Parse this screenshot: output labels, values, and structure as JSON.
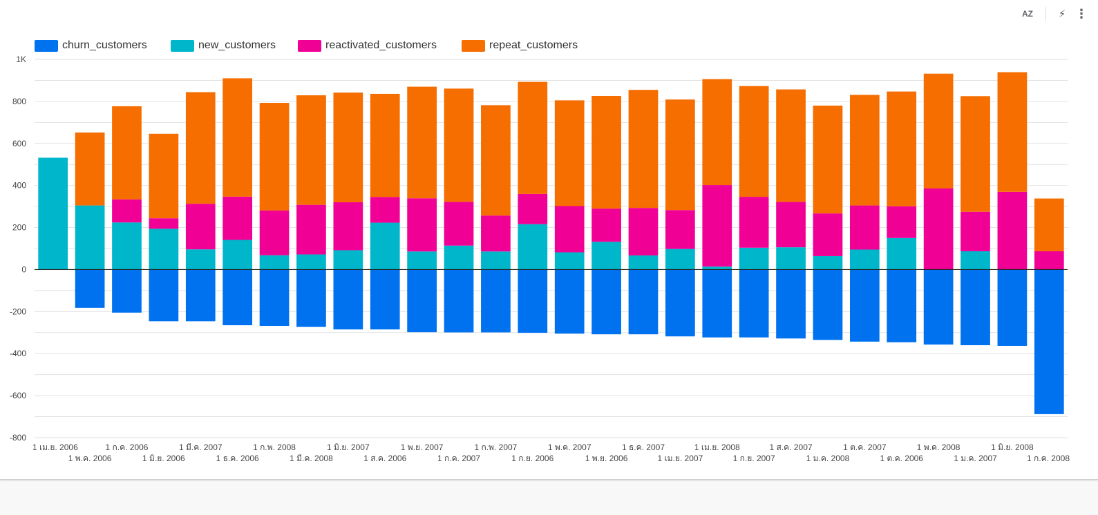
{
  "toolbar": {
    "sort_label": "AZ",
    "bolt_symbol": "⚡",
    "more_symbol": "⋮"
  },
  "legend": {
    "items": [
      {
        "label": "churn_customers",
        "color": "#0072f0"
      },
      {
        "label": "new_customers",
        "color": "#00b6cb"
      },
      {
        "label": "reactivated_customers",
        "color": "#f10096"
      },
      {
        "label": "repeat_customers",
        "color": "#f66d00"
      }
    ]
  },
  "chart_data": {
    "type": "bar",
    "stacked": true,
    "ylim": [
      -800,
      1000
    ],
    "yticks": [
      -800,
      -600,
      -400,
      -200,
      0,
      200,
      400,
      600,
      800,
      1000
    ],
    "ytick_labels": [
      "-800",
      "-600",
      "-400",
      "-200",
      "0",
      "200",
      "400",
      "600",
      "800",
      "1K"
    ],
    "grid": true,
    "legend_position": "top-left",
    "categories": [
      "1 เม.ย. 2006",
      "1 พ.ค. 2006",
      "1 ก.ค. 2006",
      "1 มิ.ย. 2006",
      "1 มี.ค. 2007",
      "1 ธ.ค. 2006",
      "1 ก.พ. 2008",
      "1 มี.ค. 2008",
      "1 มิ.ย. 2007",
      "1 ส.ค. 2006",
      "1 พ.ย. 2007",
      "1 ก.ค. 2007",
      "1 ก.พ. 2007",
      "1 ก.ย. 2006",
      "1 พ.ค. 2007",
      "1 พ.ย. 2006",
      "1 ธ.ค. 2007",
      "1 เม.ย. 2007",
      "1 เม.ย. 2008",
      "1 ก.ย. 2007",
      "1 ส.ค. 2007",
      "1 ม.ค. 2008",
      "1 ต.ค. 2007",
      "1 ต.ค. 2006",
      "1 พ.ค. 2008",
      "1 ม.ค. 2007",
      "1 มิ.ย. 2008",
      "1 ก.ค. 2008"
    ],
    "series": [
      {
        "name": "churn_customers",
        "color": "#0072f0",
        "values": [
          0,
          -182,
          -205,
          -246,
          -246,
          -265,
          -268,
          -273,
          -285,
          -285,
          -298,
          -299,
          -299,
          -301,
          -305,
          -308,
          -308,
          -318,
          -323,
          -323,
          -328,
          -335,
          -343,
          -346,
          -357,
          -360,
          -363,
          -688
        ]
      },
      {
        "name": "new_customers",
        "color": "#00b6cb",
        "values": [
          532,
          305,
          224,
          194,
          96,
          141,
          68,
          72,
          92,
          223,
          86,
          114,
          86,
          216,
          82,
          132,
          67,
          98,
          14,
          104,
          106,
          64,
          95,
          150,
          0,
          87,
          0,
          0
        ]
      },
      {
        "name": "reactivated_customers",
        "color": "#f10096",
        "values": [
          0,
          0,
          110,
          50,
          217,
          206,
          213,
          236,
          228,
          122,
          253,
          208,
          171,
          144,
          220,
          158,
          226,
          185,
          388,
          242,
          216,
          203,
          210,
          151,
          386,
          188,
          370,
          87
        ]
      },
      {
        "name": "repeat_customers",
        "color": "#f66d00",
        "values": [
          0,
          347,
          443,
          402,
          531,
          563,
          512,
          521,
          522,
          491,
          531,
          539,
          525,
          533,
          503,
          536,
          562,
          526,
          504,
          527,
          535,
          513,
          526,
          546,
          546,
          550,
          569,
          251
        ]
      }
    ]
  }
}
